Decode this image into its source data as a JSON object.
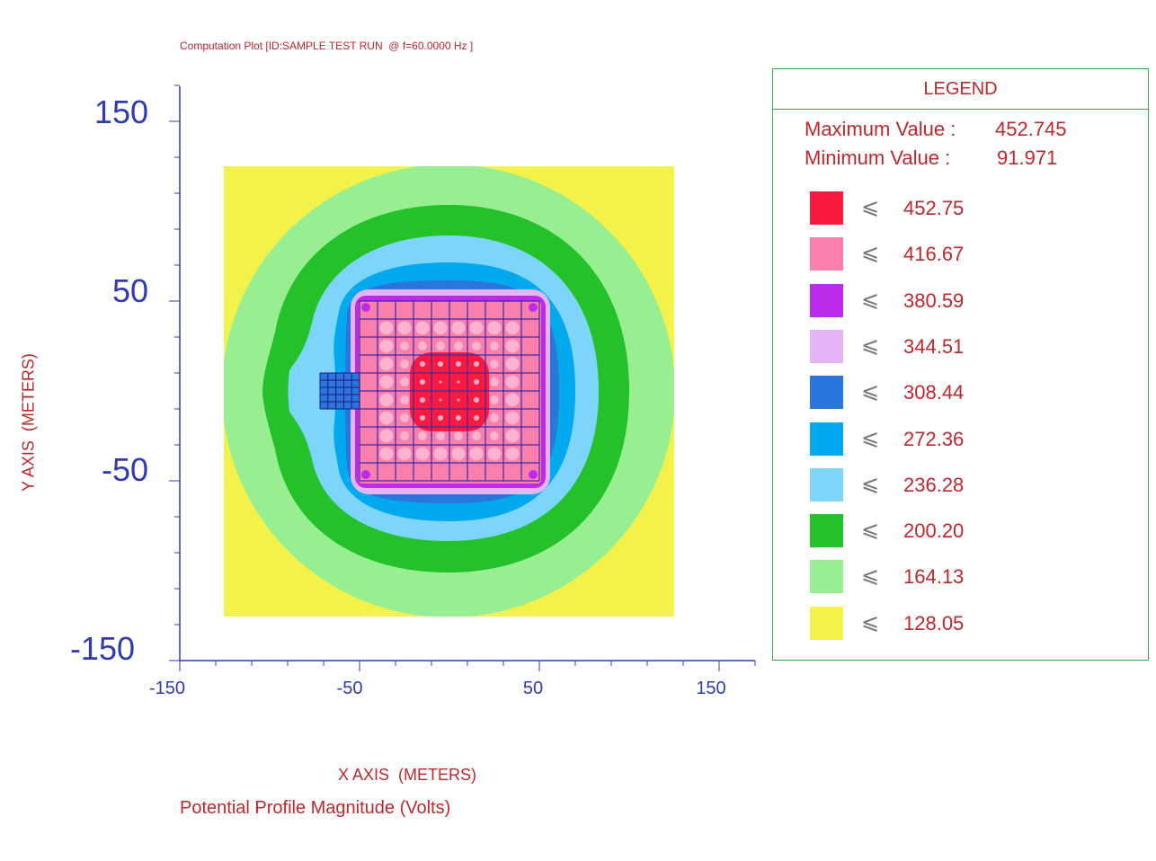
{
  "title": "Computation Plot [ID:SAMPLE TEST RUN  @ f=60.0000 Hz ]",
  "subtitle": "Potential Profile Magnitude (Volts)",
  "chart_data": {
    "type": "heatmap",
    "title": "Computation Plot [ID:SAMPLE TEST RUN  @ f=60.0000 Hz ]",
    "subtitle": "Potential Profile Magnitude (Volts)",
    "xlabel": "X AXIS  (METERS)",
    "ylabel": "Y AXIS  (METERS)",
    "xlim": [
      -150,
      170
    ],
    "ylim": [
      -150,
      170
    ],
    "x_ticks": [
      "-150",
      "-50",
      "50",
      "150"
    ],
    "y_ticks": [
      "150",
      "50",
      "-50",
      "-150"
    ],
    "maximum_label": "Maximum Value :",
    "maximum_value": "452.745",
    "minimum_label": "Minimum Value :",
    "minimum_value": "91.971",
    "legend_title": "LEGEND",
    "legend_symbol": "⩽",
    "levels": [
      {
        "value": "452.75",
        "color": "#fb1a3f"
      },
      {
        "value": "416.67",
        "color": "#fb7fac"
      },
      {
        "value": "380.59",
        "color": "#bd2bea"
      },
      {
        "value": "344.51",
        "color": "#e5b4f6"
      },
      {
        "value": "308.44",
        "color": "#2b76dc"
      },
      {
        "value": "272.36",
        "color": "#02a9ef"
      },
      {
        "value": "236.28",
        "color": "#7dd6fa"
      },
      {
        "value": "200.20",
        "color": "#24c12b"
      },
      {
        "value": "164.13",
        "color": "#97ef91"
      },
      {
        "value": "128.05",
        "color": "#f3f24b"
      }
    ],
    "grid": {
      "main_x_range": [
        -50,
        50
      ],
      "main_y_range": [
        -50,
        50
      ],
      "small_x_range": [
        -72,
        -50
      ],
      "small_y_range": [
        -10,
        10
      ]
    }
  }
}
